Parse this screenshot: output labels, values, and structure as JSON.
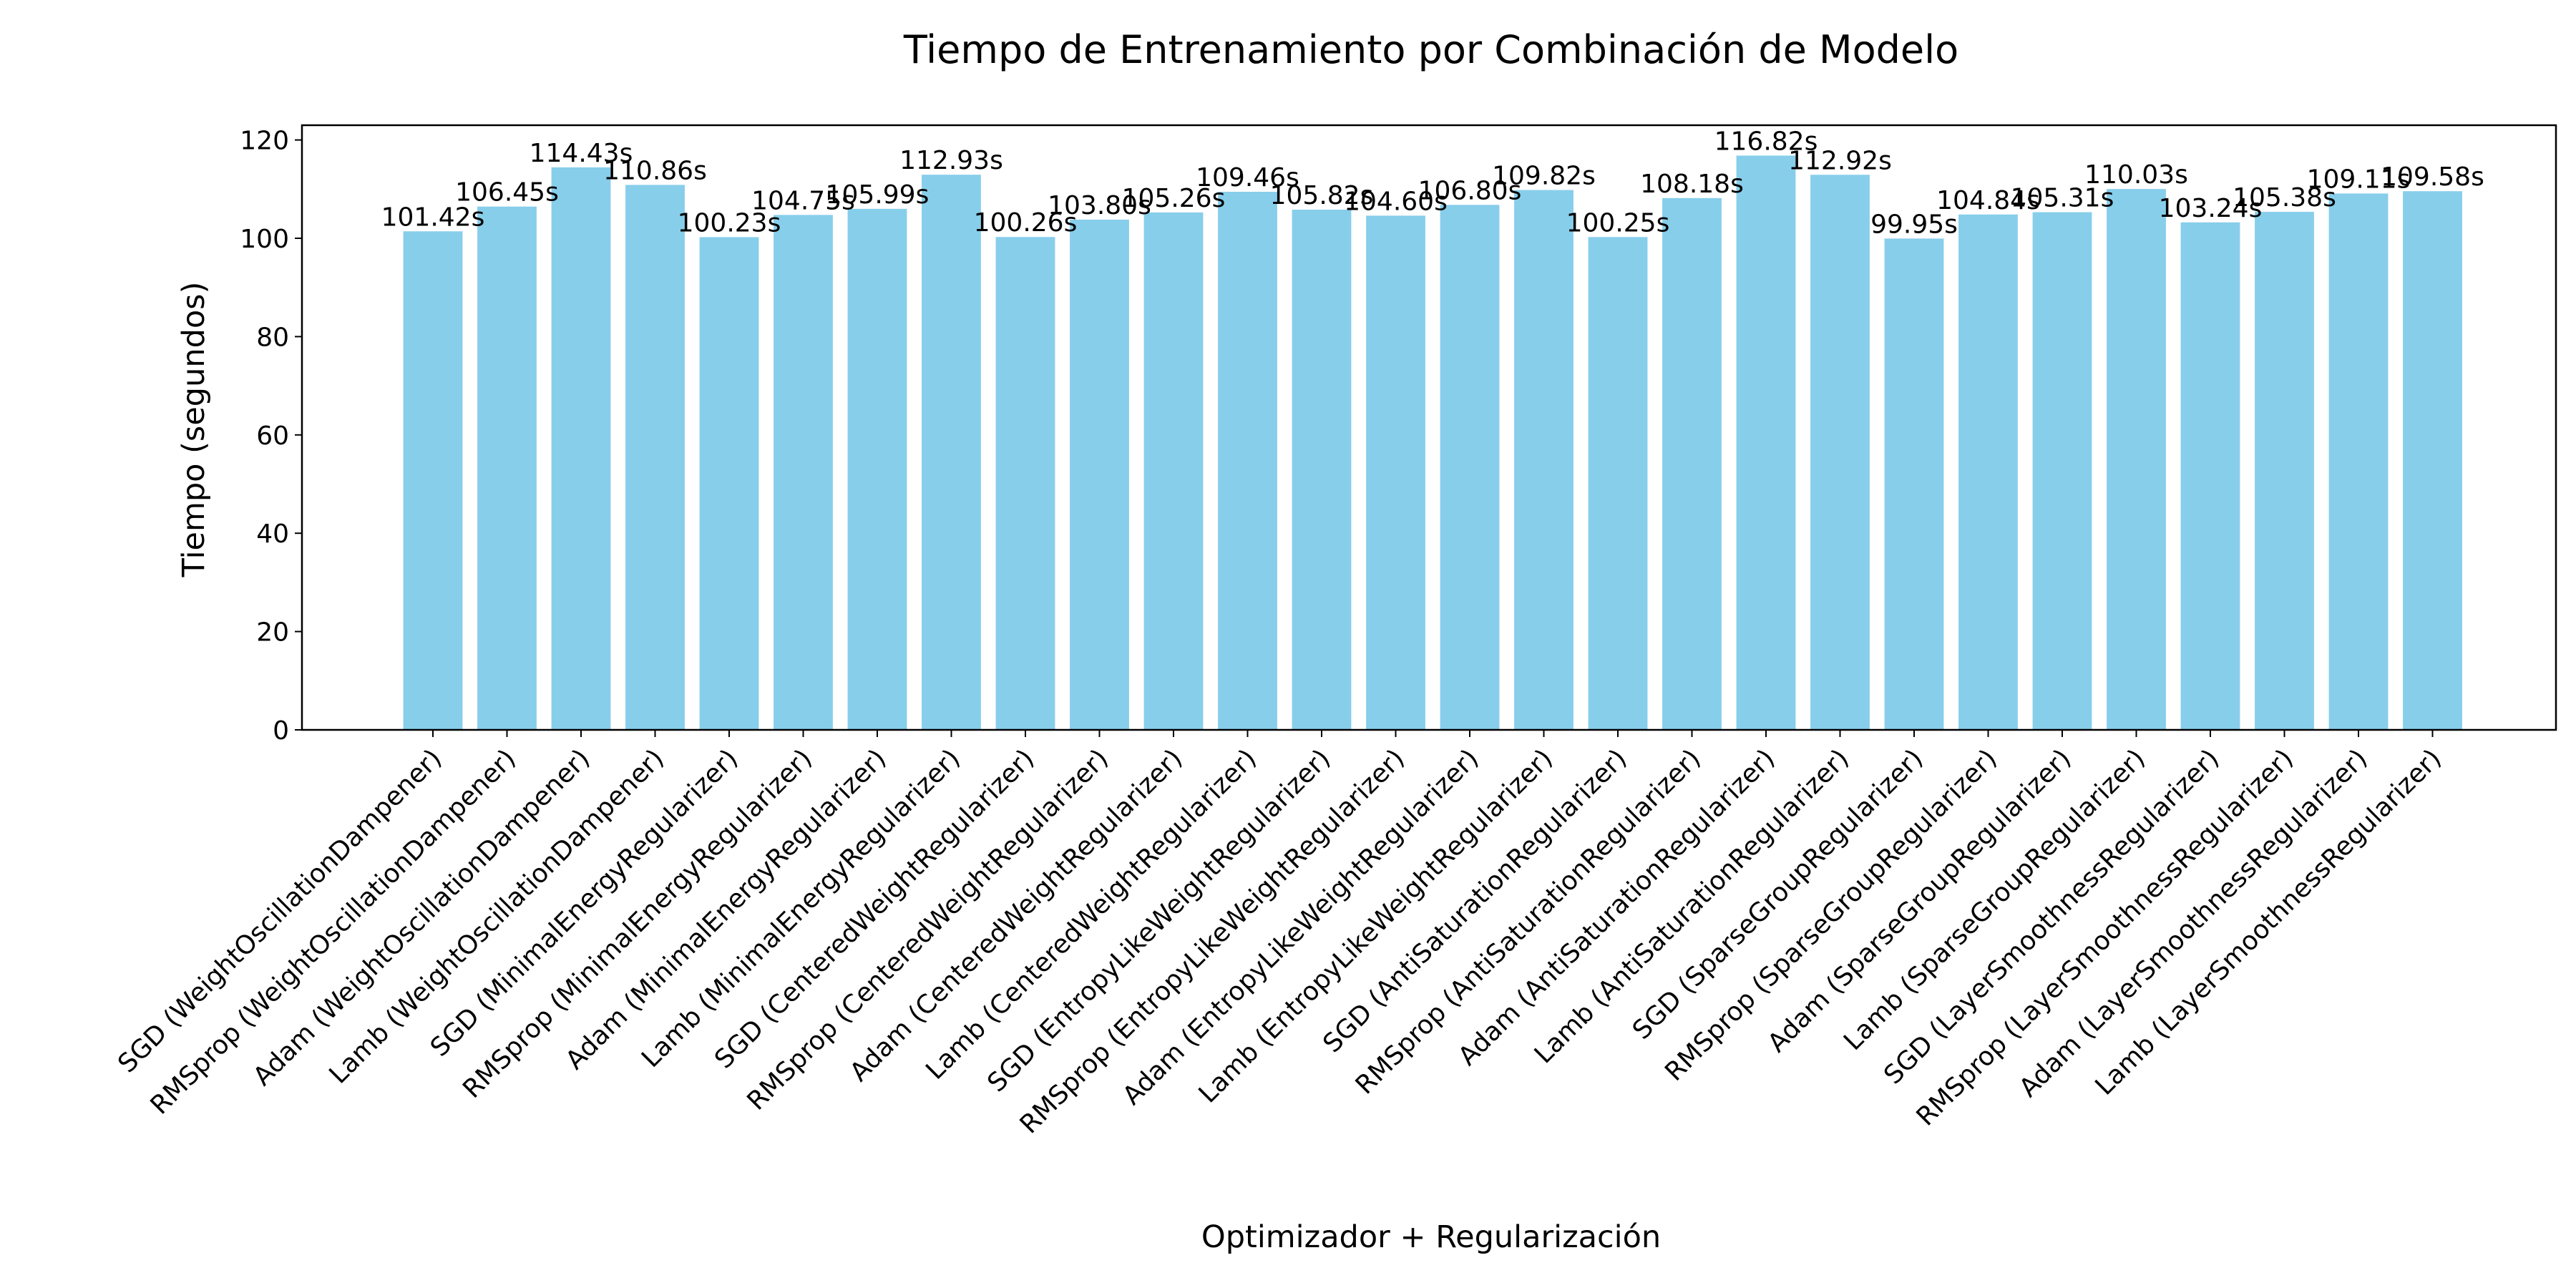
{
  "chart_data": {
    "type": "bar",
    "title": "Tiempo de Entrenamiento por Combinación de Modelo",
    "xlabel": "Optimizador + Regularización",
    "ylabel": "Tiempo (segundos)",
    "ylim": [
      0,
      123
    ],
    "yticks": [
      0,
      20,
      40,
      60,
      80,
      100,
      120
    ],
    "grid": false,
    "bar_color": "#87CEEB",
    "categories": [
      "SGD (WeightOscillationDampener)",
      "RMSprop (WeightOscillationDampener)",
      "Adam (WeightOscillationDampener)",
      "Lamb (WeightOscillationDampener)",
      "SGD (MinimalEnergyRegularizer)",
      "RMSprop (MinimalEnergyRegularizer)",
      "Adam (MinimalEnergyRegularizer)",
      "Lamb (MinimalEnergyRegularizer)",
      "SGD (CenteredWeightRegularizer)",
      "RMSprop (CenteredWeightRegularizer)",
      "Adam (CenteredWeightRegularizer)",
      "Lamb (CenteredWeightRegularizer)",
      "SGD (EntropyLikeWeightRegularizer)",
      "RMSprop (EntropyLikeWeightRegularizer)",
      "Adam (EntropyLikeWeightRegularizer)",
      "Lamb (EntropyLikeWeightRegularizer)",
      "SGD (AntiSaturationRegularizer)",
      "RMSprop (AntiSaturationRegularizer)",
      "Adam (AntiSaturationRegularizer)",
      "Lamb (AntiSaturationRegularizer)",
      "SGD (SparseGroupRegularizer)",
      "RMSprop (SparseGroupRegularizer)",
      "Adam (SparseGroupRegularizer)",
      "Lamb (SparseGroupRegularizer)",
      "SGD (LayerSmoothnessRegularizer)",
      "RMSprop (LayerSmoothnessRegularizer)",
      "Adam (LayerSmoothnessRegularizer)",
      "Lamb (LayerSmoothnessRegularizer)"
    ],
    "values": [
      101.42,
      106.45,
      114.43,
      110.86,
      100.23,
      104.75,
      105.99,
      112.93,
      100.26,
      103.8,
      105.26,
      109.46,
      105.82,
      104.6,
      106.8,
      109.82,
      100.25,
      108.18,
      116.82,
      112.92,
      99.95,
      104.84,
      105.31,
      110.03,
      103.24,
      105.38,
      109.11,
      109.58
    ],
    "value_labels": [
      "101.42s",
      "106.45s",
      "114.43s",
      "110.86s",
      "100.23s",
      "104.75s",
      "105.99s",
      "112.93s",
      "100.26s",
      "103.80s",
      "105.26s",
      "109.46s",
      "105.82s",
      "104.60s",
      "106.80s",
      "109.82s",
      "100.25s",
      "108.18s",
      "116.82s",
      "112.92s",
      "99.95s",
      "104.84s",
      "105.31s",
      "110.03s",
      "103.24s",
      "105.38s",
      "109.11s",
      "109.58s"
    ]
  }
}
